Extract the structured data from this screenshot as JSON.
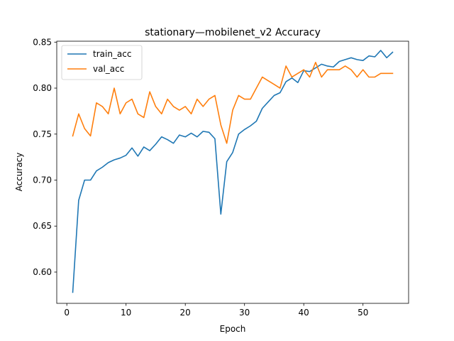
{
  "chart_data": {
    "type": "line",
    "title": "stationary—mobilenet_v2 Accuracy",
    "xlabel": "Epoch",
    "ylabel": "Accuracy",
    "xlim": [
      -1.7,
      57.7
    ],
    "ylim": [
      0.566,
      0.851
    ],
    "xticks": [
      0,
      10,
      20,
      30,
      40,
      50
    ],
    "yticks": [
      0.6,
      0.65,
      0.7,
      0.75,
      0.8,
      0.85
    ],
    "xtick_labels": [
      "0",
      "10",
      "20",
      "30",
      "40",
      "50"
    ],
    "ytick_labels": [
      "0.60",
      "0.65",
      "0.70",
      "0.75",
      "0.80",
      "0.85"
    ],
    "grid": false,
    "legend_position": "top-left",
    "x": [
      1,
      2,
      3,
      4,
      5,
      6,
      7,
      8,
      9,
      10,
      11,
      12,
      13,
      14,
      15,
      16,
      17,
      18,
      19,
      20,
      21,
      22,
      23,
      24,
      25,
      26,
      27,
      28,
      29,
      30,
      31,
      32,
      33,
      34,
      35,
      36,
      37,
      38,
      39,
      40,
      41,
      42,
      43,
      44,
      45,
      46,
      47,
      48,
      49,
      50,
      51,
      52,
      53,
      54,
      55
    ],
    "series": [
      {
        "name": "train_acc",
        "color": "#1f77b4",
        "values": [
          0.578,
          0.678,
          0.7,
          0.7,
          0.71,
          0.714,
          0.719,
          0.722,
          0.724,
          0.727,
          0.735,
          0.726,
          0.736,
          0.732,
          0.739,
          0.747,
          0.744,
          0.74,
          0.749,
          0.747,
          0.751,
          0.747,
          0.753,
          0.752,
          0.745,
          0.663,
          0.72,
          0.73,
          0.75,
          0.755,
          0.759,
          0.764,
          0.778,
          0.785,
          0.792,
          0.795,
          0.807,
          0.811,
          0.806,
          0.819,
          0.818,
          0.822,
          0.826,
          0.824,
          0.823,
          0.829,
          0.831,
          0.833,
          0.831,
          0.83,
          0.835,
          0.834,
          0.841,
          0.833,
          0.839
        ]
      },
      {
        "name": "val_acc",
        "color": "#ff7f0e",
        "values": [
          0.748,
          0.772,
          0.756,
          0.748,
          0.784,
          0.78,
          0.772,
          0.8,
          0.772,
          0.784,
          0.788,
          0.772,
          0.768,
          0.796,
          0.78,
          0.772,
          0.788,
          0.78,
          0.776,
          0.78,
          0.772,
          0.788,
          0.78,
          0.788,
          0.792,
          0.76,
          0.74,
          0.776,
          0.792,
          0.788,
          0.788,
          0.8,
          0.812,
          0.808,
          0.804,
          0.8,
          0.824,
          0.812,
          0.816,
          0.82,
          0.812,
          0.828,
          0.812,
          0.82,
          0.82,
          0.82,
          0.824,
          0.82,
          0.812,
          0.82,
          0.812,
          0.812,
          0.816,
          0.816,
          0.816
        ]
      }
    ]
  }
}
